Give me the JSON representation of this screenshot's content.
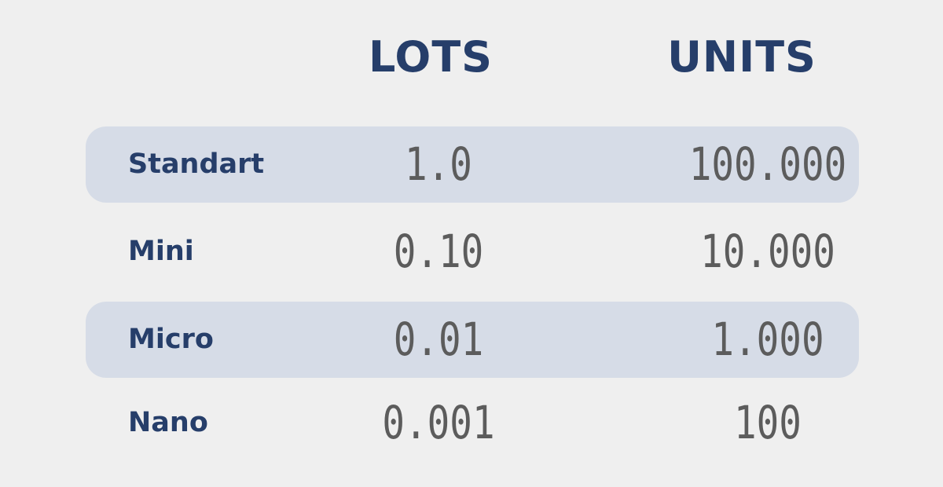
{
  "headers": {
    "lots": "LOTS",
    "units": "UNITS"
  },
  "rows": [
    {
      "label": "Standart",
      "lots": "1.0",
      "units": "100.000",
      "shaded": true
    },
    {
      "label": "Mini",
      "lots": "0.10",
      "units": "10.000",
      "shaded": false
    },
    {
      "label": "Micro",
      "lots": "0.01",
      "units": "1.000",
      "shaded": true
    },
    {
      "label": "Nano",
      "lots": "0.001",
      "units": "100",
      "shaded": false
    }
  ],
  "colors": {
    "background": "#efefef",
    "row_shade": "#d6dce7",
    "heading_text": "#263e6a",
    "value_text": "#5c5c5c"
  }
}
